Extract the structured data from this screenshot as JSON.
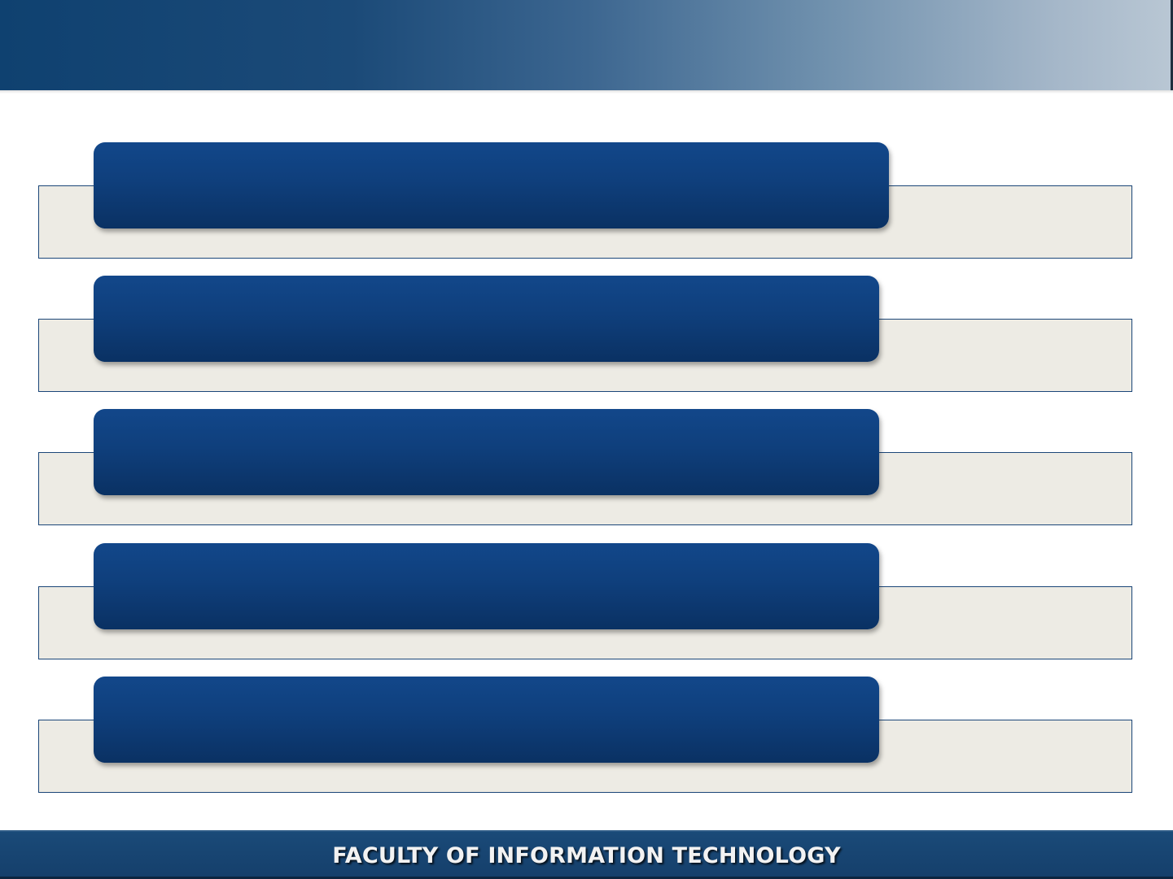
{
  "slide": {
    "footer_title": "FACULTY OF INFORMATION TECHNOLOGY",
    "rows": [
      {
        "label": ""
      },
      {
        "label": ""
      },
      {
        "label": ""
      },
      {
        "label": ""
      },
      {
        "label": ""
      }
    ]
  },
  "colors": {
    "banner_start": "#0f4170",
    "banner_end": "#b9c7d4",
    "pill": "#0f3f7c",
    "row_box_fill": "#edebe4",
    "row_box_border": "#1b4678",
    "footer": "#174270",
    "footer_text": "#f2f2f2"
  }
}
